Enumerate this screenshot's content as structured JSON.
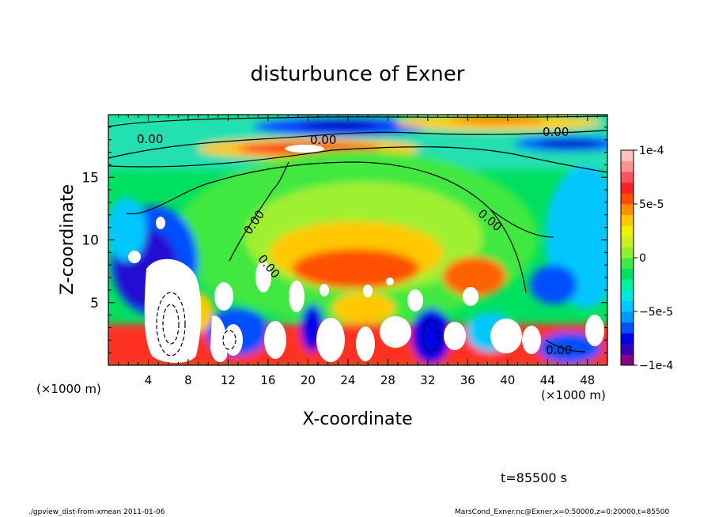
{
  "chart_data": {
    "type": "heatmap",
    "title": "disturbunce of Exner",
    "xlabel": "X-coordinate",
    "ylabel": "Z-coordinate",
    "x_unit_left": "(×1000 m)",
    "x_unit_right": "(×1000 m)",
    "xlim": [
      0,
      50
    ],
    "ylim": [
      0,
      20
    ],
    "x_ticks": [
      4,
      8,
      12,
      16,
      20,
      24,
      28,
      32,
      36,
      40,
      44,
      48
    ],
    "y_ticks": [
      5,
      10,
      15
    ],
    "colorbar": {
      "range": [
        -0.0001,
        0.0001
      ],
      "ticks": [
        {
          "value": 0.0001,
          "label": "1e-4"
        },
        {
          "value": 5e-05,
          "label": "5e-5"
        },
        {
          "value": 0,
          "label": "0"
        },
        {
          "value": -5e-05,
          "label": "−5e-5"
        },
        {
          "value": -0.0001,
          "label": "−1e-4"
        }
      ],
      "colors": [
        "#8b008b",
        "#3a00b8",
        "#0000e6",
        "#0050ff",
        "#0095ff",
        "#00c8ff",
        "#00e8e0",
        "#00f0a0",
        "#00e060",
        "#40e840",
        "#90f030",
        "#c8f020",
        "#f0f000",
        "#ffc800",
        "#ff9000",
        "#ff5000",
        "#ff2020",
        "#ff5060",
        "#ff9090",
        "#ffc0c0"
      ]
    },
    "contour_labels": [
      "0.00",
      "0.00",
      "0.00",
      "0.00",
      "0.00",
      "0.00",
      "0.00",
      "0.00"
    ],
    "time_label": "t=85500 s",
    "footer_left": "./gpview_dist-from-xmean  2011-01-06",
    "footer_right": "MarsCond_Exner.nc@Exner,x=0:50000,z=0:20000,t=85500"
  }
}
